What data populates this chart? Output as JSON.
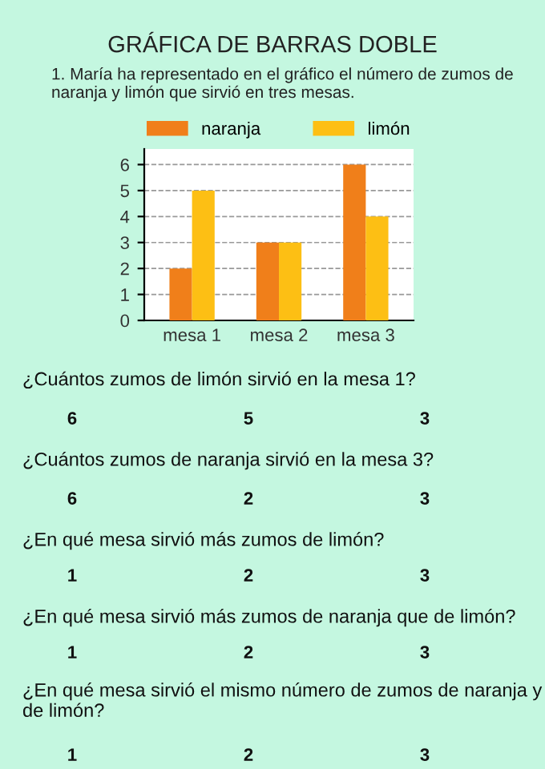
{
  "chart_data": {
    "type": "bar",
    "title": "GRÁFICA DE BARRAS DOBLE",
    "categories": [
      "mesa 1",
      "mesa 2",
      "mesa 3"
    ],
    "series": [
      {
        "name": "naranja",
        "color": "#f07f1a",
        "values": [
          2,
          3,
          6
        ]
      },
      {
        "name": "limón",
        "color": "#fdbf14",
        "values": [
          5,
          3,
          4
        ]
      }
    ],
    "ylim": [
      0,
      6.6
    ],
    "yticks": [
      0,
      1,
      2,
      3,
      4,
      5,
      6
    ],
    "grid": "y",
    "legend": "top",
    "annotations": [
      "1. María ha representado en el gráfico el número de zumos de naranja y limón que sirvió en tres mesas.",
      "¿Cuántos zumos de limón sirvió en la mesa 1?",
      "6",
      "5",
      "3",
      "¿Cuántos zumos de naranja sirvió en la mesa 3?",
      "6",
      "2",
      "3",
      "¿En qué mesa sirvió más zumos de limón?",
      "1",
      "2",
      "3",
      "¿En qué mesa sirvió más zumos de naranja que de limón?",
      "1",
      "2",
      "3",
      "¿En qué mesa sirvió el mismo número de zumos de naranja y de limón?",
      "1",
      "2",
      "3"
    ]
  }
}
